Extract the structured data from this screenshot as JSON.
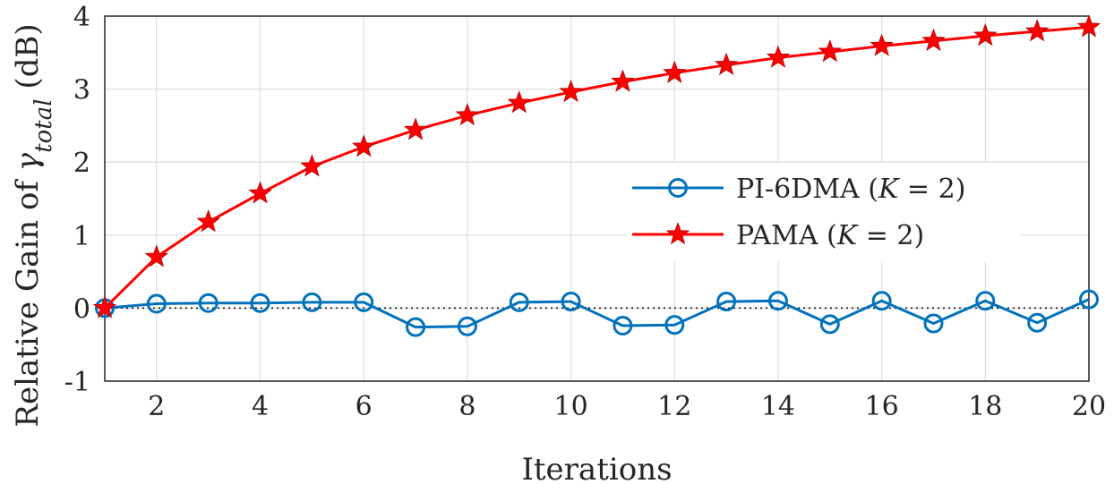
{
  "chart_data": {
    "type": "line",
    "xlabel": "Iterations",
    "ylabel_prefix": "Relative Gain of ",
    "ylabel_symbol": "γ",
    "ylabel_subscript": "total",
    "ylabel_suffix": " (dB)",
    "xlim": [
      1,
      20
    ],
    "ylim": [
      -1,
      4
    ],
    "xticks": [
      2,
      4,
      6,
      8,
      10,
      12,
      14,
      16,
      18,
      20
    ],
    "yticks": [
      -1,
      0,
      1,
      2,
      3,
      4
    ],
    "grid": true,
    "reference_line": 0,
    "x": [
      1,
      2,
      3,
      4,
      5,
      6,
      7,
      8,
      9,
      10,
      11,
      12,
      13,
      14,
      15,
      16,
      17,
      18,
      19,
      20
    ],
    "series": [
      {
        "name": "PI-6DMA",
        "legend_param": "K",
        "legend_value": "2",
        "color": "#0072BD",
        "marker": "circle",
        "values": [
          0.0,
          0.06,
          0.07,
          0.07,
          0.08,
          0.08,
          -0.26,
          -0.25,
          0.08,
          0.09,
          -0.24,
          -0.23,
          0.09,
          0.1,
          -0.22,
          0.1,
          -0.21,
          0.1,
          -0.2,
          0.12
        ]
      },
      {
        "name": "PAMA",
        "legend_param": "K",
        "legend_value": "2",
        "color": "#FF0000",
        "marker": "star",
        "values": [
          0.0,
          0.7,
          1.18,
          1.57,
          1.94,
          2.21,
          2.44,
          2.64,
          2.81,
          2.96,
          3.1,
          3.22,
          3.33,
          3.43,
          3.51,
          3.59,
          3.66,
          3.73,
          3.79,
          3.85
        ]
      }
    ]
  }
}
